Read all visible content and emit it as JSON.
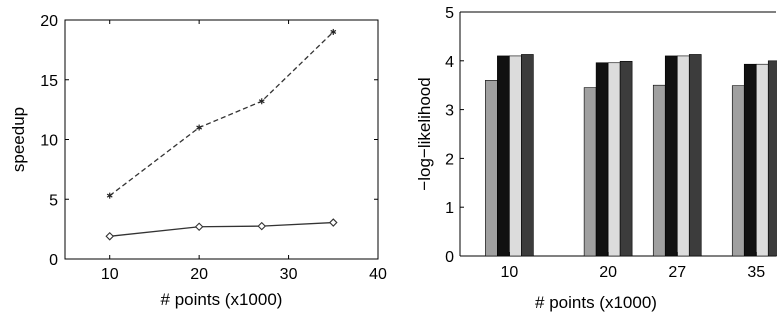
{
  "chart_data": [
    {
      "type": "line",
      "xlabel": "# points (x1000)",
      "ylabel": "speedup",
      "xlim": [
        5,
        40
      ],
      "ylim": [
        0,
        20
      ],
      "xticks": [
        "10",
        "20",
        "30",
        "40"
      ],
      "yticks": [
        "0",
        "5",
        "10",
        "15",
        "20"
      ],
      "grid": false,
      "series": [
        {
          "style": "dashed",
          "marker": "asterisk",
          "x": [
            10,
            20,
            27,
            35
          ],
          "y": [
            5.3,
            11.0,
            13.2,
            19.0
          ]
        },
        {
          "style": "solid",
          "marker": "diamond",
          "x": [
            10,
            20,
            27,
            35
          ],
          "y": [
            1.9,
            2.7,
            2.75,
            3.05
          ]
        }
      ]
    },
    {
      "type": "bar",
      "xlabel": "# points (x1000)",
      "ylabel": "−log−likelihood",
      "ylim": [
        0,
        5
      ],
      "categories": [
        "10",
        "20",
        "27",
        "35"
      ],
      "yticks": [
        "0",
        "1",
        "2",
        "3",
        "4",
        "5"
      ],
      "grid": false,
      "series": [
        {
          "color": "#a0a0a0",
          "values": [
            3.6,
            3.45,
            3.5,
            3.49
          ]
        },
        {
          "color": "#111111",
          "values": [
            4.1,
            3.96,
            4.1,
            3.93
          ]
        },
        {
          "color": "#dcdcdc",
          "values": [
            4.1,
            3.96,
            4.1,
            3.93
          ]
        },
        {
          "color": "#3c3c3c",
          "values": [
            4.13,
            3.99,
            4.13,
            4.0
          ]
        }
      ]
    }
  ]
}
